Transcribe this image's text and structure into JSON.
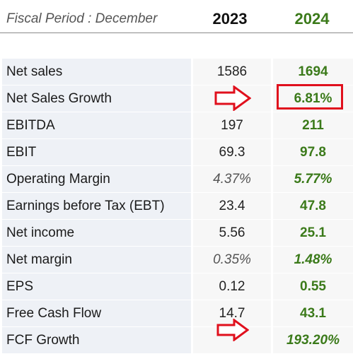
{
  "header": {
    "period_label": "Fiscal Period : December",
    "year_1": "2023",
    "year_2": "2024"
  },
  "rows": [
    {
      "label": "Net sales",
      "y2023": "1586",
      "y2024": "1694"
    },
    {
      "label": "Net Sales Growth",
      "y2023": "",
      "y2024": "6.81%"
    },
    {
      "label": "EBITDA",
      "y2023": "197",
      "y2024": "211"
    },
    {
      "label": "EBIT",
      "y2023": "69.3",
      "y2024": "97.8"
    },
    {
      "label": "Operating Margin",
      "y2023": "4.37%",
      "y2024": "5.77%"
    },
    {
      "label": "Earnings before Tax (EBT)",
      "y2023": "23.4",
      "y2024": "47.8"
    },
    {
      "label": "Net income",
      "y2023": "5.56",
      "y2024": "25.1"
    },
    {
      "label": "Net margin",
      "y2023": "0.35%",
      "y2024": "1.48%"
    },
    {
      "label": "EPS",
      "y2023": "0.12",
      "y2024": "0.55"
    },
    {
      "label": "Free Cash Flow",
      "y2023": "14.7",
      "y2024": "43.1"
    },
    {
      "label": "FCF Growth",
      "y2023": "",
      "y2024": "193.20%"
    }
  ],
  "colors": {
    "label_bg": "#eef1f6",
    "value_bg": "#f7f7f7",
    "forecast_green": "#3b7a1a",
    "annotation_red": "#e0101d"
  },
  "annotations": {
    "highlight_icon": "red-rectangle",
    "arrow_icon": "red-right-arrow"
  }
}
